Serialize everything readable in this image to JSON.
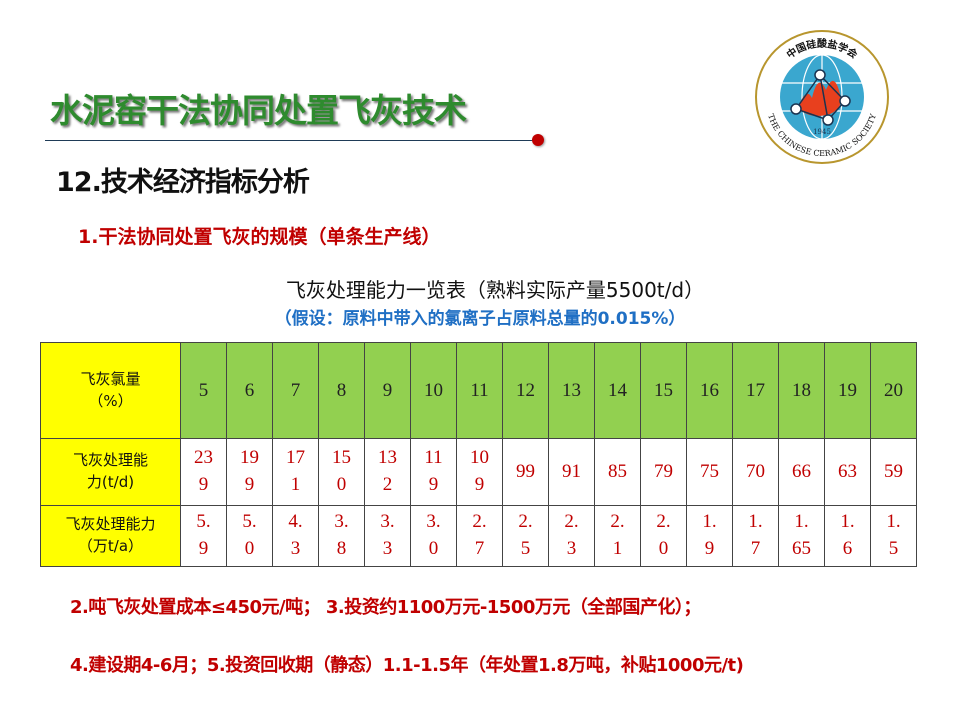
{
  "header": {
    "title": "水泥窑干法协同处置飞灰技术",
    "subtitle": "12.技术经济指标分析",
    "accent_color": "#2e8b2e",
    "dot_color": "#c00000"
  },
  "logo": {
    "name_cn": "中国硅酸盐学会",
    "name_en": "THE CHINESE CERAMIC SOCIETY",
    "year": "1945"
  },
  "section": {
    "heading": "1.干法协同处置飞灰的规模（单条生产线）",
    "table_caption": "飞灰处理能力一览表（熟料实际产量5500t/d）",
    "table_note": "（假设：原料中带入的氯离子占原料总量的0.015%）"
  },
  "table": {
    "rows": [
      {
        "label_line1": "飞灰氯量",
        "label_line2": "（%）",
        "values": [
          "5",
          "6",
          "7",
          "8",
          "9",
          "10",
          "11",
          "12",
          "13",
          "14",
          "15",
          "16",
          "17",
          "18",
          "19",
          "20"
        ]
      },
      {
        "label_line1": "飞灰处理能",
        "label_line2": "力(t/d)",
        "values": [
          "239",
          "199",
          "171",
          "150",
          "132",
          "119",
          "109",
          "99",
          "91",
          "85",
          "79",
          "75",
          "70",
          "66",
          "63",
          "59"
        ]
      },
      {
        "label_line1": "飞灰处理能力",
        "label_line2": "（万t/a）",
        "values": [
          "5.9",
          "5.0",
          "4.3",
          "3.8",
          "3.3",
          "3.0",
          "2.7",
          "2.5",
          "2.3",
          "2.1",
          "2.0",
          "1.9",
          "1.7",
          "1.65",
          "1.6",
          "1.5"
        ]
      }
    ]
  },
  "notes": {
    "line1": "2.吨飞灰处置成本≤450元/吨；  3.投资约1100万元-1500万元（全部国产化）；",
    "line2": "4.建设期4-6月；5.投资回收期（静态）1.1-1.5年（年处置1.8万吨，补贴1000元/t)"
  }
}
